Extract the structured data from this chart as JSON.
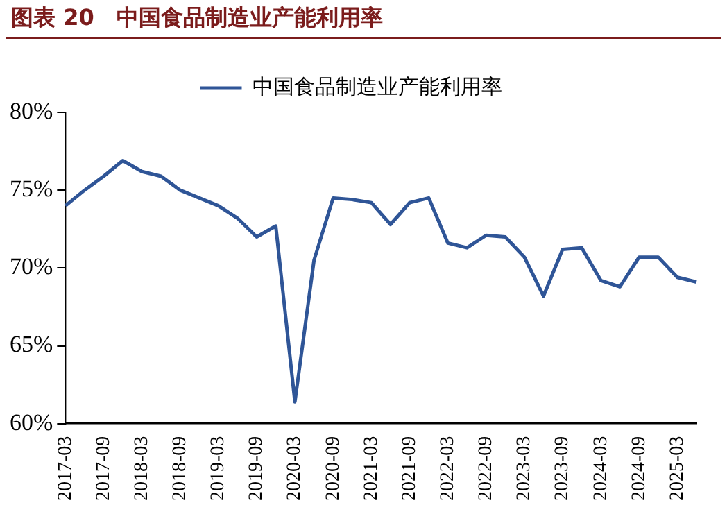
{
  "chart_data": {
    "type": "line",
    "title": "图表 20　中国食品制造业产能利用率",
    "categories": [
      "2017-03",
      null,
      "2017-09",
      null,
      "2018-03",
      null,
      "2018-09",
      null,
      "2019-03",
      null,
      "2019-09",
      null,
      "2020-03",
      null,
      "2020-09",
      null,
      "2021-03",
      null,
      "2021-09",
      null,
      "2022-03",
      null,
      "2022-09",
      null,
      "2023-03",
      null,
      "2023-09",
      null,
      "2024-03",
      null,
      "2024-09",
      null,
      "2025-03",
      null
    ],
    "series": [
      {
        "name": "中国食品制造业产能利用率",
        "color": "#2f5597",
        "values": [
          74.0,
          75.0,
          75.9,
          76.9,
          76.2,
          75.9,
          75.0,
          74.5,
          74.0,
          73.2,
          72.0,
          72.7,
          61.4,
          70.5,
          74.5,
          74.4,
          74.2,
          72.8,
          74.2,
          74.5,
          71.6,
          71.3,
          72.1,
          72.0,
          70.7,
          68.2,
          71.2,
          71.3,
          69.2,
          68.8,
          70.7,
          70.7,
          69.4,
          69.1
        ]
      }
    ],
    "ylim": [
      60,
      80
    ],
    "yticks": [
      {
        "value": 60,
        "label": "60%"
      },
      {
        "value": 65,
        "label": "65%"
      },
      {
        "value": 70,
        "label": "70%"
      },
      {
        "value": 75,
        "label": "75%"
      },
      {
        "value": 80,
        "label": "80%"
      }
    ],
    "grid": false,
    "legend": "top",
    "marker": "none",
    "line_style": "solid"
  }
}
